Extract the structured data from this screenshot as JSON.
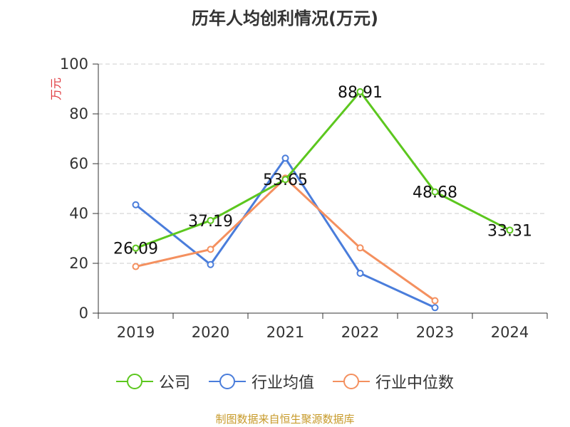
{
  "title": "历年人均创利情况(万元)",
  "source": "制图数据来自恒生聚源数据库",
  "colors": {
    "company": "#5cc71e",
    "industry_avg": "#4a7ddb",
    "industry_median": "#f4905f",
    "grid": "#cccccc",
    "axis": "#333333",
    "unit": "#e0393e",
    "source": "#c79a2a"
  },
  "chart_data": {
    "type": "line",
    "title": "历年人均创利情况(万元)",
    "ylabel": "万元",
    "xlabel": "",
    "ylim": [
      0,
      100
    ],
    "yticks": [
      0,
      20,
      40,
      60,
      80,
      100
    ],
    "grid": true,
    "legend_position": "bottom",
    "categories": [
      "2019",
      "2020",
      "2021",
      "2022",
      "2023",
      "2024"
    ],
    "series": [
      {
        "name": "公司",
        "key": "company",
        "values": [
          26.09,
          37.19,
          53.65,
          88.91,
          48.68,
          33.31
        ],
        "labels": [
          "26.09",
          "37.19",
          "53.65",
          "88.91",
          "48.68",
          "33.31"
        ]
      },
      {
        "name": "行业均值",
        "key": "industry_avg",
        "values": [
          43.5,
          19.5,
          62.2,
          16.0,
          2.2,
          null
        ]
      },
      {
        "name": "行业中位数",
        "key": "industry_median",
        "values": [
          18.7,
          25.6,
          54.2,
          26.2,
          5.0,
          null
        ]
      }
    ]
  }
}
